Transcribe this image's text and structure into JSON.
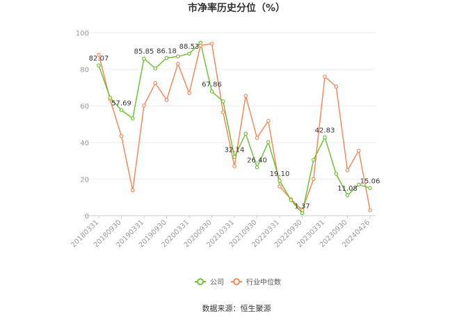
{
  "chart_data": {
    "type": "line",
    "title": "市净率历史分位（%）",
    "ylim": [
      0,
      100
    ],
    "yticks": [
      0,
      20,
      40,
      60,
      80,
      100
    ],
    "grid": true,
    "legend_position": "bottom",
    "x_tick_labels": [
      "20180331",
      "20180930",
      "20190331",
      "20190930",
      "20200331",
      "20200930",
      "20210331",
      "20210930",
      "20220331",
      "20220930",
      "20230331",
      "20230930",
      "20240426"
    ],
    "x_tick_index": [
      0,
      2,
      4,
      6,
      8,
      10,
      12,
      14,
      16,
      18,
      20,
      22,
      24
    ],
    "series": [
      {
        "name": "公司",
        "color": "#6ec232",
        "values": [
          82.07,
          64.5,
          57.69,
          53.2,
          85.85,
          80.5,
          86.18,
          87.0,
          88.53,
          94.5,
          67.86,
          62.5,
          32.14,
          44.8,
          26.4,
          40.2,
          19.1,
          8.5,
          1.37,
          30.5,
          42.83,
          22.8,
          11.08,
          17.0,
          15.06
        ],
        "labels": {
          "0": "82.07",
          "2": "57.69",
          "4": "85.85",
          "6": "86.18",
          "8": "88.53",
          "10": "67.86",
          "12": "32.14",
          "14": "26.40",
          "16": "19.10",
          "18": "1.37",
          "20": "42.83",
          "22": "11.08",
          "24": "15.06"
        }
      },
      {
        "name": "行业中位数",
        "color": "#f4885a",
        "values": [
          88.0,
          63.5,
          43.5,
          13.8,
          60.2,
          72.5,
          63.2,
          83.0,
          67.0,
          93.0,
          94.0,
          56.5,
          27.0,
          65.5,
          42.5,
          51.8,
          16.0,
          9.0,
          3.0,
          20.0,
          76.0,
          70.5,
          24.8,
          35.5,
          3.0
        ]
      }
    ]
  },
  "source_text": "数据来源：恒生聚源"
}
